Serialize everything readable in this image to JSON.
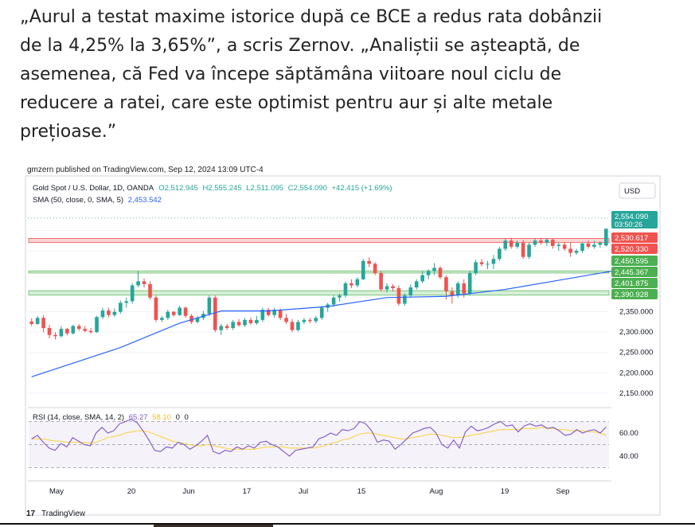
{
  "article": {
    "paragraph_lines": [
      "„Aurul a testat maxime istorice după ce BCE a redus rata dobânzii",
      "de la 4,25% la 3,65%”, a scris Zernov. „Analiștii se așteaptă, de",
      "asemenea, că Fed va începe săptămâna viitoare noul ciclu de",
      "reducere a ratei, care este optimist pentru aur și alte metale",
      "prețioase.”"
    ]
  },
  "chart_header": {
    "published": "gmzern published on TradingView.com, Sep 12, 2024 13:09 UTC-4",
    "symbol": "Gold Spot / U.S. Dollar, 1D, OANDA",
    "ohlc": {
      "O": "O2,512.945",
      "H": "H2,555.245",
      "L": "L2,511.095",
      "C": "C2,554.090",
      "change": "+42.415 (+1.69%)"
    },
    "sma_label": "SMA (50, close, 0, SMA, 5)",
    "sma_value": "2,453.542",
    "currency": "USD",
    "rsi_label": "RSI (14, close, SMA, 14, 2)",
    "rsi_values": [
      "65.27",
      "58.10",
      "0",
      "0"
    ],
    "brand": "TradingView"
  },
  "colors": {
    "up": "#26a69a",
    "down": "#ef5350",
    "sma": "#2962ff",
    "rsi": "#7e57c2",
    "rsi_ma": "#f7d33a",
    "zone_red": "#f9d6d6",
    "zone_green": "#d6efd6"
  },
  "chart_data": {
    "type": "candlestick",
    "x_tick_labels": [
      "May",
      "20",
      "Jun",
      "17",
      "Jul",
      "15",
      "Aug",
      "19",
      "Sep"
    ],
    "price_axis": {
      "ylim": [
        2130,
        2600
      ],
      "ticks": [
        "2,350.000",
        "2,300.000",
        "2,250.000",
        "2,200.000",
        "2,150.000"
      ]
    },
    "price_badges": [
      {
        "label": "2,554.090",
        "sub": "03:50:26",
        "value": 2554.09,
        "color": "#26a69a"
      },
      {
        "label": "2,530.617",
        "value": 2530.617,
        "color": "#ef5350"
      },
      {
        "label": "2,520.330",
        "value": 2520.33,
        "color": "#ef5350"
      },
      {
        "label": "2,450.595",
        "value": 2450.595,
        "color": "#4caf50"
      },
      {
        "label": "2,445.367",
        "value": 2445.367,
        "color": "#4caf50"
      },
      {
        "label": "2,401.875",
        "value": 2401.875,
        "color": "#4caf50"
      },
      {
        "label": "2,390.928",
        "value": 2390.928,
        "color": "#4caf50"
      }
    ],
    "zones": [
      {
        "from": 2520.33,
        "to": 2530.617,
        "color": "red"
      },
      {
        "from": 2445.367,
        "to": 2450.595,
        "color": "green"
      },
      {
        "from": 2390.928,
        "to": 2401.875,
        "color": "green"
      }
    ],
    "candles": [
      {
        "o": 2326,
        "h": 2334,
        "l": 2315,
        "c": 2320
      },
      {
        "o": 2320,
        "h": 2340,
        "l": 2318,
        "c": 2335
      },
      {
        "o": 2335,
        "h": 2342,
        "l": 2300,
        "c": 2310
      },
      {
        "o": 2310,
        "h": 2318,
        "l": 2285,
        "c": 2293
      },
      {
        "o": 2293,
        "h": 2300,
        "l": 2282,
        "c": 2290
      },
      {
        "o": 2290,
        "h": 2315,
        "l": 2287,
        "c": 2308
      },
      {
        "o": 2308,
        "h": 2310,
        "l": 2292,
        "c": 2297
      },
      {
        "o": 2297,
        "h": 2318,
        "l": 2294,
        "c": 2315
      },
      {
        "o": 2315,
        "h": 2320,
        "l": 2303,
        "c": 2308
      },
      {
        "o": 2308,
        "h": 2315,
        "l": 2300,
        "c": 2303
      },
      {
        "o": 2303,
        "h": 2310,
        "l": 2296,
        "c": 2300
      },
      {
        "o": 2300,
        "h": 2340,
        "l": 2298,
        "c": 2337
      },
      {
        "o": 2337,
        "h": 2360,
        "l": 2332,
        "c": 2353
      },
      {
        "o": 2353,
        "h": 2360,
        "l": 2336,
        "c": 2342
      },
      {
        "o": 2342,
        "h": 2358,
        "l": 2338,
        "c": 2350
      },
      {
        "o": 2350,
        "h": 2378,
        "l": 2345,
        "c": 2372
      },
      {
        "o": 2372,
        "h": 2385,
        "l": 2360,
        "c": 2376
      },
      {
        "o": 2376,
        "h": 2420,
        "l": 2370,
        "c": 2415
      },
      {
        "o": 2415,
        "h": 2450,
        "l": 2410,
        "c": 2425
      },
      {
        "o": 2425,
        "h": 2432,
        "l": 2410,
        "c": 2418
      },
      {
        "o": 2418,
        "h": 2425,
        "l": 2380,
        "c": 2385
      },
      {
        "o": 2385,
        "h": 2390,
        "l": 2325,
        "c": 2330
      },
      {
        "o": 2330,
        "h": 2340,
        "l": 2325,
        "c": 2335
      },
      {
        "o": 2335,
        "h": 2355,
        "l": 2330,
        "c": 2350
      },
      {
        "o": 2350,
        "h": 2352,
        "l": 2338,
        "c": 2342
      },
      {
        "o": 2342,
        "h": 2365,
        "l": 2340,
        "c": 2360
      },
      {
        "o": 2360,
        "h": 2363,
        "l": 2335,
        "c": 2340
      },
      {
        "o": 2340,
        "h": 2345,
        "l": 2320,
        "c": 2325
      },
      {
        "o": 2325,
        "h": 2340,
        "l": 2322,
        "c": 2335
      },
      {
        "o": 2335,
        "h": 2352,
        "l": 2330,
        "c": 2345
      },
      {
        "o": 2345,
        "h": 2390,
        "l": 2340,
        "c": 2385
      },
      {
        "o": 2385,
        "h": 2390,
        "l": 2300,
        "c": 2305
      },
      {
        "o": 2305,
        "h": 2320,
        "l": 2293,
        "c": 2315
      },
      {
        "o": 2315,
        "h": 2320,
        "l": 2305,
        "c": 2310
      },
      {
        "o": 2310,
        "h": 2330,
        "l": 2305,
        "c": 2325
      },
      {
        "o": 2325,
        "h": 2332,
        "l": 2313,
        "c": 2317
      },
      {
        "o": 2317,
        "h": 2335,
        "l": 2312,
        "c": 2330
      },
      {
        "o": 2330,
        "h": 2336,
        "l": 2318,
        "c": 2322
      },
      {
        "o": 2322,
        "h": 2340,
        "l": 2318,
        "c": 2330
      },
      {
        "o": 2330,
        "h": 2360,
        "l": 2325,
        "c": 2355
      },
      {
        "o": 2355,
        "h": 2360,
        "l": 2338,
        "c": 2342
      },
      {
        "o": 2342,
        "h": 2360,
        "l": 2335,
        "c": 2355
      },
      {
        "o": 2355,
        "h": 2358,
        "l": 2330,
        "c": 2335
      },
      {
        "o": 2335,
        "h": 2345,
        "l": 2320,
        "c": 2325
      },
      {
        "o": 2325,
        "h": 2332,
        "l": 2300,
        "c": 2305
      },
      {
        "o": 2305,
        "h": 2330,
        "l": 2302,
        "c": 2325
      },
      {
        "o": 2325,
        "h": 2335,
        "l": 2320,
        "c": 2330
      },
      {
        "o": 2330,
        "h": 2335,
        "l": 2322,
        "c": 2327
      },
      {
        "o": 2327,
        "h": 2340,
        "l": 2322,
        "c": 2335
      },
      {
        "o": 2335,
        "h": 2365,
        "l": 2330,
        "c": 2360
      },
      {
        "o": 2360,
        "h": 2372,
        "l": 2350,
        "c": 2368
      },
      {
        "o": 2368,
        "h": 2390,
        "l": 2362,
        "c": 2385
      },
      {
        "o": 2385,
        "h": 2395,
        "l": 2375,
        "c": 2390
      },
      {
        "o": 2390,
        "h": 2425,
        "l": 2385,
        "c": 2420
      },
      {
        "o": 2420,
        "h": 2430,
        "l": 2408,
        "c": 2415
      },
      {
        "o": 2415,
        "h": 2435,
        "l": 2410,
        "c": 2430
      },
      {
        "o": 2430,
        "h": 2480,
        "l": 2428,
        "c": 2475
      },
      {
        "o": 2475,
        "h": 2484,
        "l": 2460,
        "c": 2468
      },
      {
        "o": 2468,
        "h": 2472,
        "l": 2440,
        "c": 2445
      },
      {
        "o": 2445,
        "h": 2450,
        "l": 2400,
        "c": 2405
      },
      {
        "o": 2405,
        "h": 2420,
        "l": 2398,
        "c": 2413
      },
      {
        "o": 2413,
        "h": 2418,
        "l": 2400,
        "c": 2408
      },
      {
        "o": 2408,
        "h": 2415,
        "l": 2365,
        "c": 2370
      },
      {
        "o": 2370,
        "h": 2395,
        "l": 2365,
        "c": 2390
      },
      {
        "o": 2390,
        "h": 2418,
        "l": 2385,
        "c": 2410
      },
      {
        "o": 2410,
        "h": 2430,
        "l": 2405,
        "c": 2425
      },
      {
        "o": 2425,
        "h": 2450,
        "l": 2420,
        "c": 2440
      },
      {
        "o": 2440,
        "h": 2455,
        "l": 2430,
        "c": 2450
      },
      {
        "o": 2450,
        "h": 2470,
        "l": 2440,
        "c": 2458
      },
      {
        "o": 2458,
        "h": 2462,
        "l": 2430,
        "c": 2435
      },
      {
        "o": 2435,
        "h": 2440,
        "l": 2380,
        "c": 2400
      },
      {
        "o": 2400,
        "h": 2410,
        "l": 2370,
        "c": 2390
      },
      {
        "o": 2390,
        "h": 2425,
        "l": 2385,
        "c": 2420
      },
      {
        "o": 2420,
        "h": 2430,
        "l": 2385,
        "c": 2395
      },
      {
        "o": 2395,
        "h": 2450,
        "l": 2390,
        "c": 2445
      },
      {
        "o": 2445,
        "h": 2478,
        "l": 2440,
        "c": 2472
      },
      {
        "o": 2472,
        "h": 2480,
        "l": 2462,
        "c": 2467
      },
      {
        "o": 2467,
        "h": 2475,
        "l": 2455,
        "c": 2468
      },
      {
        "o": 2468,
        "h": 2490,
        "l": 2455,
        "c": 2480
      },
      {
        "o": 2480,
        "h": 2510,
        "l": 2475,
        "c": 2505
      },
      {
        "o": 2505,
        "h": 2530,
        "l": 2500,
        "c": 2525
      },
      {
        "o": 2525,
        "h": 2532,
        "l": 2505,
        "c": 2510
      },
      {
        "o": 2510,
        "h": 2525,
        "l": 2505,
        "c": 2520
      },
      {
        "o": 2520,
        "h": 2527,
        "l": 2480,
        "c": 2485
      },
      {
        "o": 2485,
        "h": 2520,
        "l": 2480,
        "c": 2515
      },
      {
        "o": 2515,
        "h": 2530,
        "l": 2510,
        "c": 2525
      },
      {
        "o": 2525,
        "h": 2532,
        "l": 2515,
        "c": 2520
      },
      {
        "o": 2520,
        "h": 2531,
        "l": 2512,
        "c": 2527
      },
      {
        "o": 2527,
        "h": 2530,
        "l": 2505,
        "c": 2512
      },
      {
        "o": 2512,
        "h": 2520,
        "l": 2500,
        "c": 2515
      },
      {
        "o": 2515,
        "h": 2522,
        "l": 2500,
        "c": 2505
      },
      {
        "o": 2505,
        "h": 2520,
        "l": 2485,
        "c": 2495
      },
      {
        "o": 2495,
        "h": 2505,
        "l": 2490,
        "c": 2500
      },
      {
        "o": 2500,
        "h": 2520,
        "l": 2495,
        "c": 2518
      },
      {
        "o": 2518,
        "h": 2525,
        "l": 2505,
        "c": 2510
      },
      {
        "o": 2510,
        "h": 2525,
        "l": 2505,
        "c": 2515
      },
      {
        "o": 2515,
        "h": 2523,
        "l": 2508,
        "c": 2520
      },
      {
        "o": 2512.945,
        "h": 2555.245,
        "l": 2511.095,
        "c": 2554.09
      }
    ],
    "sma50": [
      {
        "i": 0,
        "v": 2190
      },
      {
        "i": 15,
        "v": 2262
      },
      {
        "i": 25,
        "v": 2322
      },
      {
        "i": 32,
        "v": 2352
      },
      {
        "i": 40,
        "v": 2352
      },
      {
        "i": 50,
        "v": 2363
      },
      {
        "i": 60,
        "v": 2385
      },
      {
        "i": 70,
        "v": 2388
      },
      {
        "i": 80,
        "v": 2405
      },
      {
        "i": 90,
        "v": 2430
      },
      {
        "i": 98,
        "v": 2450
      }
    ],
    "rsi": {
      "levels": [
        70,
        50,
        30
      ],
      "ticks": [
        "60.00",
        "40.00"
      ],
      "values": [
        55,
        58,
        52,
        47,
        45,
        51,
        48,
        56,
        53,
        50,
        49,
        60,
        65,
        60,
        62,
        68,
        70,
        72,
        69,
        62,
        54,
        45,
        44,
        48,
        47,
        52,
        50,
        46,
        49,
        53,
        58,
        44,
        42,
        45,
        44,
        48,
        46,
        49,
        47,
        52,
        53,
        50,
        48,
        44,
        40,
        45,
        46,
        47,
        48,
        55,
        57,
        60,
        58,
        63,
        62,
        64,
        70,
        68,
        62,
        52,
        54,
        53,
        46,
        50,
        55,
        60,
        62,
        64,
        65,
        60,
        50,
        47,
        54,
        47,
        61,
        66,
        62,
        63,
        65,
        68,
        70,
        66,
        67,
        61,
        66,
        68,
        66,
        67,
        64,
        65,
        62,
        58,
        59,
        63,
        60,
        62,
        63,
        60,
        65.27
      ],
      "ma": [
        55,
        55,
        55,
        54,
        53,
        53,
        52,
        52,
        52,
        52,
        51,
        52,
        54,
        56,
        57,
        58,
        60,
        61,
        62,
        62,
        61,
        59,
        57,
        55,
        53,
        52,
        51,
        50,
        49,
        49,
        50,
        49,
        48,
        47,
        46,
        46,
        46,
        46,
        46,
        47,
        48,
        48,
        48,
        48,
        47,
        47,
        47,
        47,
        47,
        48,
        49,
        51,
        52,
        54,
        55,
        57,
        59,
        60,
        60,
        59,
        58,
        57,
        56,
        55,
        55,
        56,
        57,
        58,
        59,
        59,
        58,
        57,
        56,
        56,
        57,
        58,
        59,
        60,
        61,
        62,
        63,
        63,
        63,
        63,
        64,
        64,
        64,
        65,
        64,
        64,
        63,
        63,
        62,
        62,
        62,
        61,
        61,
        60,
        58.1
      ]
    }
  }
}
